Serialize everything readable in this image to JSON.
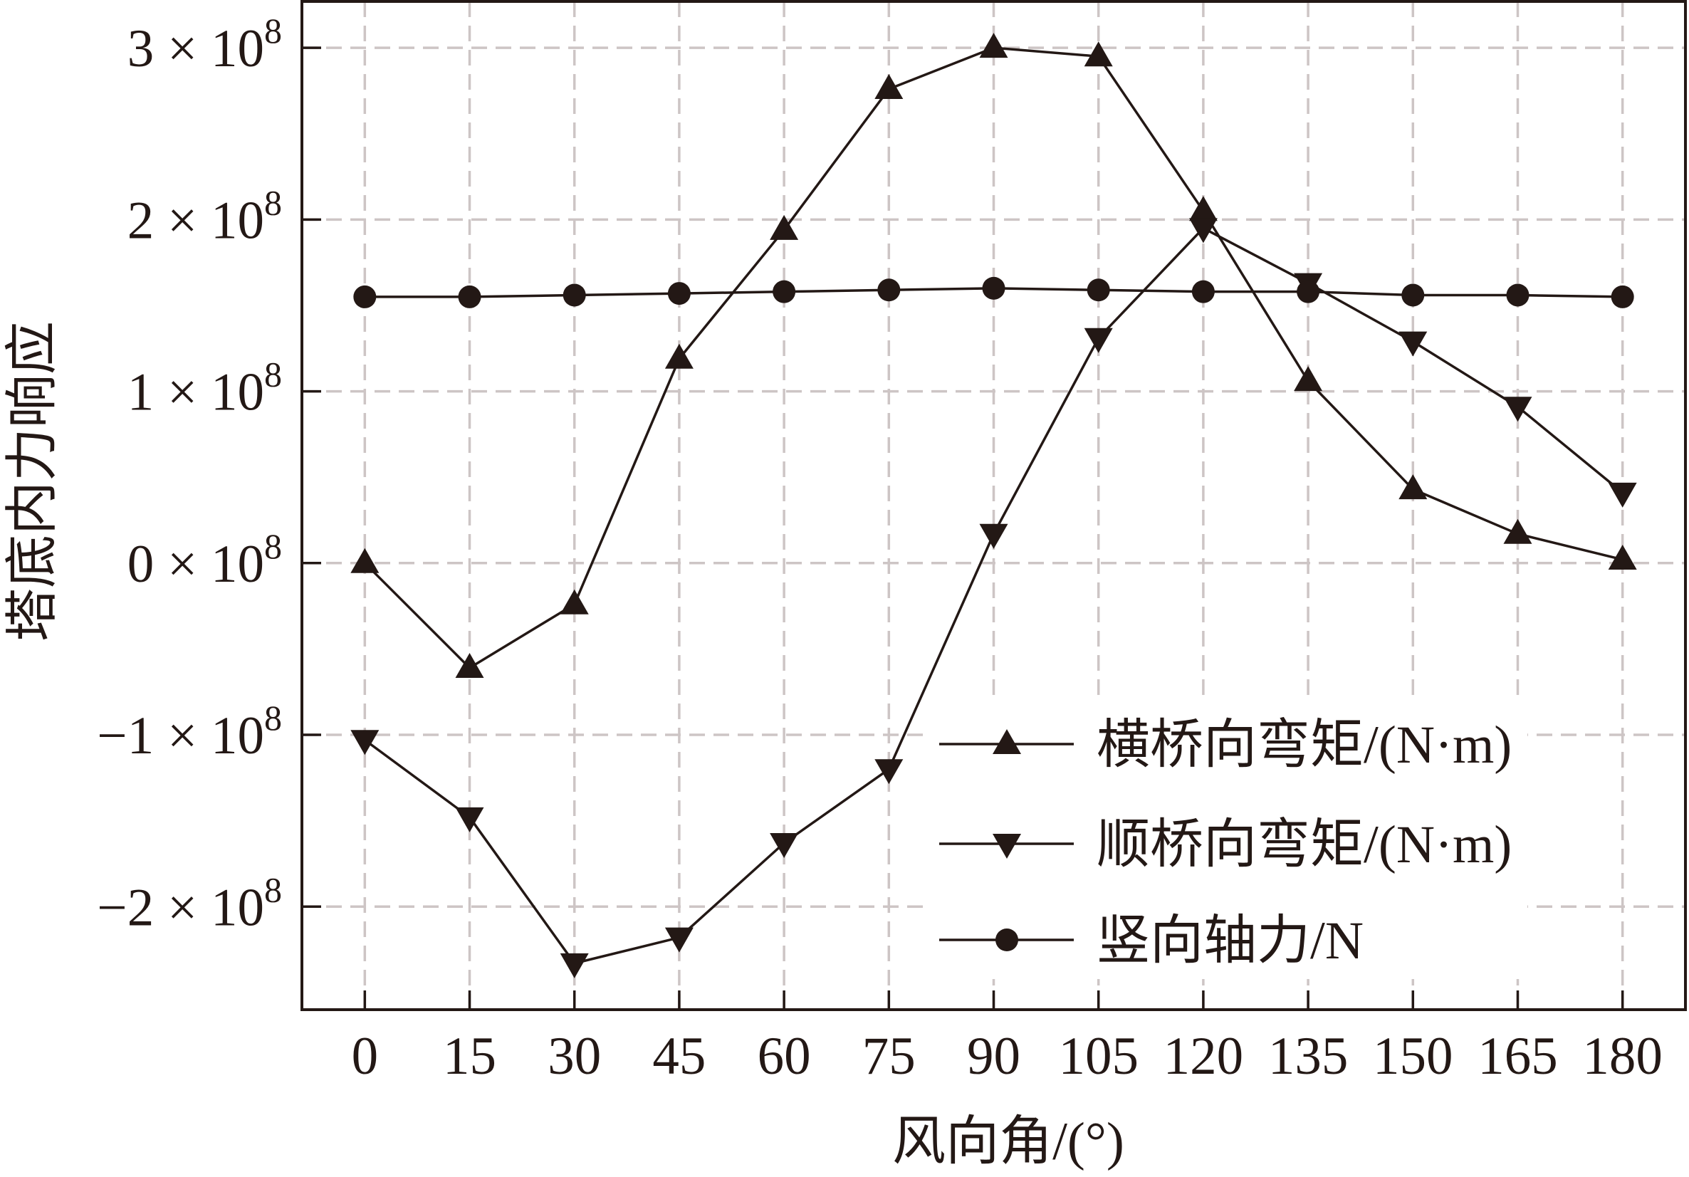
{
  "colors": {
    "line": "#231815",
    "grid": "#cdc5c5",
    "text": "#231815",
    "legend_background": "#ffffff"
  },
  "chart_data": {
    "type": "line",
    "title": "",
    "xlabel": "风向角/(°)",
    "ylabel": "塔底内力响应",
    "x": [
      0,
      15,
      30,
      45,
      60,
      75,
      90,
      105,
      120,
      135,
      150,
      165,
      180
    ],
    "xticks": [
      0,
      15,
      30,
      45,
      60,
      75,
      90,
      105,
      120,
      135,
      150,
      165,
      180
    ],
    "xtick_labels": [
      "0",
      "15",
      "30",
      "45",
      "60",
      "75",
      "90",
      "105",
      "120",
      "135",
      "150",
      "165",
      "180"
    ],
    "xlim": [
      -9,
      189
    ],
    "yticks": [
      -200000000,
      -100000000,
      0,
      100000000,
      200000000,
      300000000
    ],
    "ytick_labels": [
      {
        "base": "−2 × 10",
        "exp": "8"
      },
      {
        "base": "−1 × 10",
        "exp": "8"
      },
      {
        "base": "0 × 10",
        "exp": "8"
      },
      {
        "base": "1 × 10",
        "exp": "8"
      },
      {
        "base": "2 × 10",
        "exp": "8"
      },
      {
        "base": "3 × 10",
        "exp": "8"
      }
    ],
    "ylim": [
      -260000000,
      327000000
    ],
    "grid": true,
    "legend": "lower-right",
    "series": [
      {
        "name": "横桥向弯矩/(N·m)",
        "marker": "triangle-up",
        "values": [
          0,
          -61000000,
          -24000000,
          119000000,
          194000000,
          276000000,
          300000000,
          295000000,
          205000000,
          106000000,
          43000000,
          17000000,
          2000000
        ]
      },
      {
        "name": "顺桥向弯矩/(N·m)",
        "marker": "triangle-down",
        "values": [
          -103000000,
          -148000000,
          -233000000,
          -218000000,
          -163000000,
          -120000000,
          17000000,
          131000000,
          195000000,
          163000000,
          129000000,
          91000000,
          41000000
        ]
      },
      {
        "name": "竖向轴力/N",
        "marker": "circle",
        "values": [
          155000000,
          155000000,
          156000000,
          157000000,
          158000000,
          159000000,
          160000000,
          159000000,
          158000000,
          158000000,
          156000000,
          156000000,
          155000000
        ]
      }
    ]
  }
}
